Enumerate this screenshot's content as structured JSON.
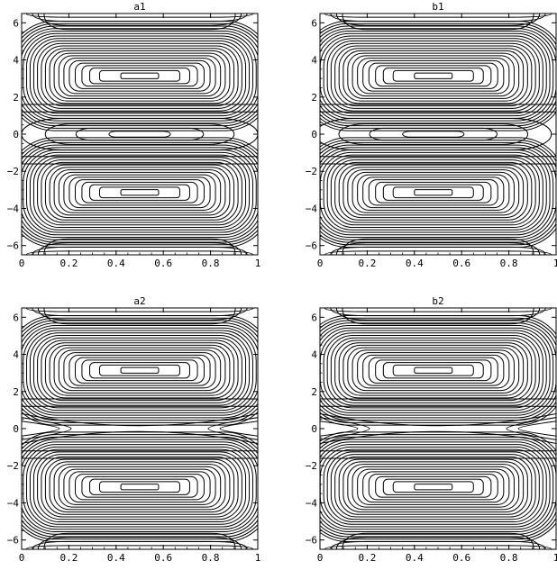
{
  "chart_data": [
    {
      "type": "contour",
      "title": "a1",
      "x_ticks": [
        "0",
        "0.2",
        "0.4",
        "0.6",
        "0.8",
        "1"
      ],
      "y_ticks": [
        "-6",
        "-4",
        "-2",
        "0",
        "2",
        "4",
        "6"
      ],
      "xlim": [
        0,
        1
      ],
      "ylim": [
        -6.5,
        6.5
      ],
      "center_separatrix": false,
      "center_offset": 0,
      "centers_y": [
        -3.14,
        3.14
      ],
      "center_x": 0.5
    },
    {
      "type": "contour",
      "title": "b1",
      "x_ticks": [
        "0",
        "0.2",
        "0.4",
        "0.6",
        "0.8",
        "1"
      ],
      "y_ticks": [
        "-6",
        "-4",
        "-2",
        "0",
        "2",
        "4",
        "6"
      ],
      "xlim": [
        0,
        1
      ],
      "ylim": [
        -6.5,
        6.5
      ],
      "center_separatrix": false,
      "center_offset": 0.12,
      "centers_y": [
        -3.14,
        3.14
      ],
      "center_x": 0.48
    },
    {
      "type": "contour",
      "title": "a2",
      "x_ticks": [
        "0",
        "0.2",
        "0.4",
        "0.6",
        "0.8",
        "1"
      ],
      "y_ticks": [
        "-6",
        "-4",
        "-2",
        "0",
        "2",
        "4",
        "6"
      ],
      "xlim": [
        0,
        1
      ],
      "ylim": [
        -6.5,
        6.5
      ],
      "center_separatrix": true,
      "center_offset": 0,
      "centers_y": [
        -3.14,
        3.14
      ],
      "center_x": 0.5
    },
    {
      "type": "contour",
      "title": "b2",
      "x_ticks": [
        "0",
        "0.2",
        "0.4",
        "0.6",
        "0.8",
        "1"
      ],
      "y_ticks": [
        "-6",
        "-4",
        "-2",
        "0",
        "2",
        "4",
        "6"
      ],
      "xlim": [
        0,
        1
      ],
      "ylim": [
        -6.5,
        6.5
      ],
      "center_separatrix": true,
      "center_offset": 0.05,
      "centers_y": [
        -3.14,
        3.14
      ],
      "center_x": 0.48
    }
  ]
}
